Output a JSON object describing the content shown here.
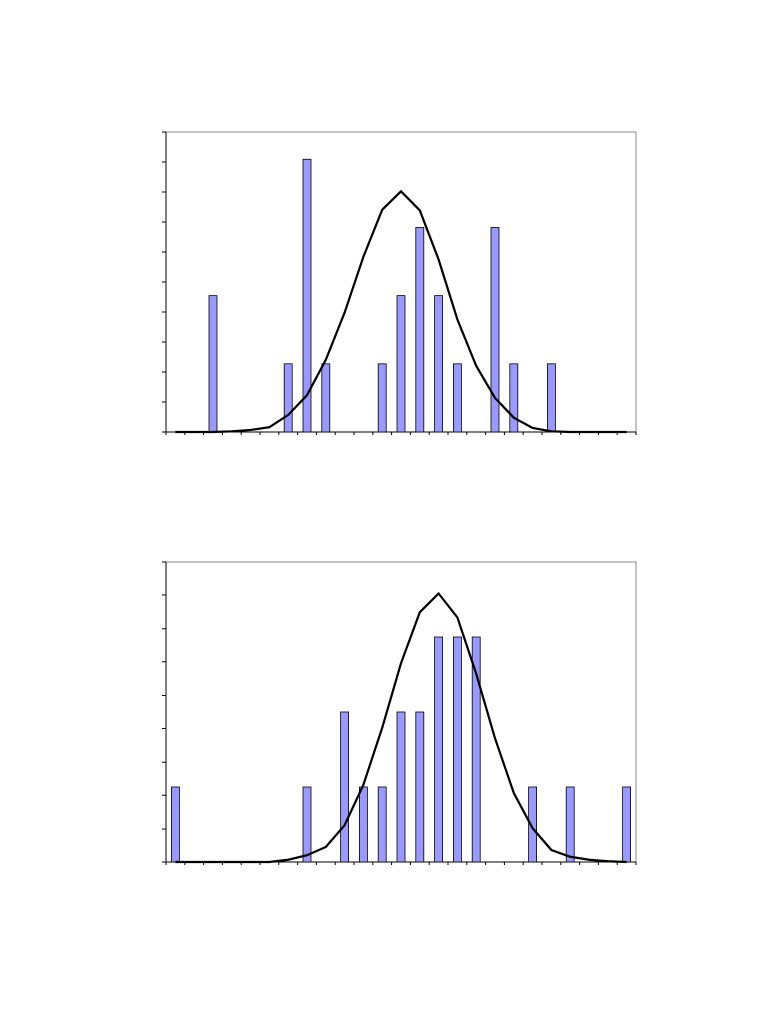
{
  "chart_data": [
    {
      "type": "bar",
      "categories": [
        null,
        null,
        null,
        null,
        null,
        null,
        null,
        null,
        null,
        null,
        null,
        null,
        null,
        null,
        null,
        null,
        null,
        null,
        null,
        null,
        null,
        null,
        null,
        null,
        null
      ],
      "series": [
        {
          "type": "bar",
          "color": "#9999ff",
          "values": [
            0,
            0,
            2,
            0,
            0,
            0,
            1,
            4,
            1,
            0,
            0,
            1,
            2,
            3,
            2,
            1,
            0,
            3,
            1,
            0,
            1,
            0,
            0,
            0,
            0
          ]
        },
        {
          "type": "line",
          "color": "#000000",
          "values": [
            0,
            0,
            0,
            0.01,
            0.03,
            0.07,
            0.25,
            0.54,
            1.06,
            1.75,
            2.57,
            3.26,
            3.53,
            3.25,
            2.53,
            1.65,
            0.97,
            0.5,
            0.21,
            0.06,
            0.01,
            0,
            0,
            0,
            0
          ]
        }
      ],
      "ylim": [
        0,
        4.4
      ],
      "yticks": [
        0,
        0.44,
        0.88,
        1.32,
        1.76,
        2.2,
        2.64,
        3.08,
        3.52,
        3.96,
        4.4
      ]
    },
    {
      "type": "bar",
      "categories": [
        null,
        null,
        null,
        null,
        null,
        null,
        null,
        null,
        null,
        null,
        null,
        null,
        null,
        null,
        null,
        null,
        null,
        null,
        null,
        null,
        null,
        null,
        null,
        null,
        null
      ],
      "series": [
        {
          "type": "bar",
          "color": "#9999ff",
          "values": [
            1,
            0,
            0,
            0,
            0,
            0,
            0,
            1,
            0,
            2,
            1,
            1,
            2,
            2,
            3,
            3,
            3,
            0,
            0,
            1,
            0,
            1,
            0,
            0,
            1
          ]
        },
        {
          "type": "line",
          "color": "#000000",
          "values": [
            0,
            0,
            0,
            0,
            0,
            0,
            0.03,
            0.09,
            0.2,
            0.49,
            1.03,
            1.79,
            2.65,
            3.33,
            3.58,
            3.26,
            2.51,
            1.65,
            0.92,
            0.45,
            0.16,
            0.07,
            0.03,
            0.01,
            0
          ]
        }
      ],
      "ylim": [
        0,
        4
      ],
      "yticks": [
        0,
        0.44,
        0.89,
        1.33,
        1.78,
        2.22,
        2.67,
        3.11,
        3.56,
        4
      ]
    }
  ]
}
